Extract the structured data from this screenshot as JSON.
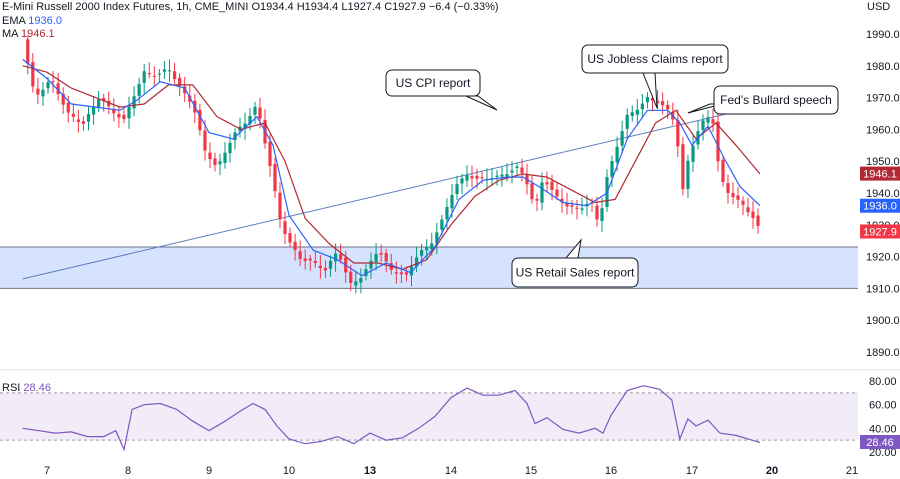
{
  "header": {
    "title": "E-Mini Russell 2000 Index Futures, 1h, CME_MINI",
    "ohlc": {
      "o": "O1934.4",
      "h": "H1934.4",
      "l": "L1927.4",
      "c": "C1927.9",
      "chg": "−6.4 (−0.33%)"
    },
    "ema_label": "EMA",
    "ema_value": "1936.0",
    "ma_label": "MA",
    "ma_value": "1946.1",
    "currency": "USD"
  },
  "rsi": {
    "label": "RSI",
    "value": "28.46"
  },
  "colors": {
    "up": "#089981",
    "down": "#f23645",
    "ema": "#2962ff",
    "ma": "#b22833",
    "rsi": "#7e57c2",
    "zone": "#d1e0ff",
    "trendline": "#5b7fbf"
  },
  "chart_data": [
    {
      "type": "candlestick",
      "title": "E-Mini Russell 2000 Index Futures, 1h, CME_MINI",
      "xlabel": "",
      "ylabel": "",
      "x_ticks": [
        "7",
        "8",
        "9",
        "10",
        "13",
        "14",
        "15",
        "16",
        "17",
        "20",
        "21"
      ],
      "y_ticks": [
        1890,
        1900,
        1910,
        1920,
        1930,
        1940,
        1950,
        1960,
        1970,
        1980,
        1990
      ],
      "ylim": [
        1882,
        2000
      ],
      "axis_side": "right",
      "grid": false,
      "price_path": [
        [
          6.7,
          1988
        ],
        [
          6.85,
          1970
        ],
        [
          7.05,
          1976
        ],
        [
          7.25,
          1965
        ],
        [
          7.45,
          1962
        ],
        [
          7.65,
          1970
        ],
        [
          7.8,
          1966
        ],
        [
          7.95,
          1963
        ],
        [
          8.1,
          1972
        ],
        [
          8.2,
          1978
        ],
        [
          8.35,
          1977
        ],
        [
          8.5,
          1979
        ],
        [
          8.65,
          1973
        ],
        [
          8.8,
          1968
        ],
        [
          8.95,
          1953
        ],
        [
          9.1,
          1948
        ],
        [
          9.3,
          1958
        ],
        [
          9.45,
          1962
        ],
        [
          9.6,
          1968
        ],
        [
          9.75,
          1950
        ],
        [
          9.9,
          1930
        ],
        [
          10.0,
          1925
        ],
        [
          10.15,
          1919
        ],
        [
          10.3,
          1918
        ],
        [
          10.45,
          1916
        ],
        [
          10.6,
          1922
        ],
        [
          10.75,
          1911
        ],
        [
          10.9,
          1914
        ],
        [
          11.1,
          1922
        ],
        [
          11.25,
          1916
        ],
        [
          11.45,
          1914
        ],
        [
          11.6,
          1921
        ],
        [
          11.75,
          1924
        ],
        [
          11.9,
          1932
        ],
        [
          12.05,
          1942
        ],
        [
          12.2,
          1946
        ],
        [
          12.35,
          1944
        ],
        [
          12.55,
          1945
        ],
        [
          12.75,
          1947
        ],
        [
          12.85,
          1948
        ],
        [
          12.95,
          1943
        ],
        [
          13.05,
          1935
        ],
        [
          13.15,
          1945
        ],
        [
          13.3,
          1939
        ],
        [
          13.45,
          1936
        ],
        [
          13.6,
          1935
        ],
        [
          13.75,
          1937
        ],
        [
          13.85,
          1930
        ],
        [
          13.95,
          1945
        ],
        [
          14.05,
          1953
        ],
        [
          14.2,
          1964
        ],
        [
          14.3,
          1966
        ],
        [
          14.45,
          1970
        ],
        [
          14.6,
          1968
        ],
        [
          14.7,
          1966
        ],
        [
          14.8,
          1962
        ],
        [
          14.88,
          1940
        ],
        [
          14.95,
          1950
        ],
        [
          15.05,
          1958
        ],
        [
          15.15,
          1963
        ],
        [
          15.25,
          1965
        ],
        [
          15.35,
          1945
        ],
        [
          15.45,
          1940
        ],
        [
          15.55,
          1938
        ],
        [
          15.65,
          1936
        ],
        [
          15.75,
          1933
        ],
        [
          15.85,
          1928
        ]
      ],
      "series": [
        {
          "name": "EMA",
          "color": "#2962ff",
          "last": 1936.0,
          "points": [
            [
              6.7,
              1982
            ],
            [
              7.0,
              1976
            ],
            [
              7.3,
              1968
            ],
            [
              7.6,
              1967
            ],
            [
              7.9,
              1966
            ],
            [
              8.1,
              1969
            ],
            [
              8.4,
              1975
            ],
            [
              8.7,
              1973
            ],
            [
              9.0,
              1959
            ],
            [
              9.3,
              1957
            ],
            [
              9.6,
              1964
            ],
            [
              9.8,
              1955
            ],
            [
              10.0,
              1933
            ],
            [
              10.3,
              1922
            ],
            [
              10.6,
              1919
            ],
            [
              10.9,
              1914
            ],
            [
              11.2,
              1918
            ],
            [
              11.5,
              1915
            ],
            [
              11.8,
              1923
            ],
            [
              12.1,
              1938
            ],
            [
              12.4,
              1944
            ],
            [
              12.7,
              1945
            ],
            [
              12.9,
              1945
            ],
            [
              13.1,
              1942
            ],
            [
              13.4,
              1937
            ],
            [
              13.7,
              1936
            ],
            [
              13.95,
              1940
            ],
            [
              14.2,
              1957
            ],
            [
              14.45,
              1966
            ],
            [
              14.7,
              1966
            ],
            [
              14.85,
              1962
            ],
            [
              15.0,
              1955
            ],
            [
              15.2,
              1961
            ],
            [
              15.4,
              1951
            ],
            [
              15.6,
              1942
            ],
            [
              15.85,
              1936
            ]
          ]
        },
        {
          "name": "MA",
          "color": "#b22833",
          "last": 1946.1,
          "points": [
            [
              6.7,
              1980
            ],
            [
              7.0,
              1978
            ],
            [
              7.3,
              1973
            ],
            [
              7.6,
              1970
            ],
            [
              7.9,
              1967
            ],
            [
              8.2,
              1968
            ],
            [
              8.5,
              1974
            ],
            [
              8.8,
              1974
            ],
            [
              9.1,
              1964
            ],
            [
              9.4,
              1960
            ],
            [
              9.7,
              1962
            ],
            [
              9.95,
              1950
            ],
            [
              10.2,
              1932
            ],
            [
              10.5,
              1924
            ],
            [
              10.8,
              1918
            ],
            [
              11.1,
              1918
            ],
            [
              11.4,
              1916
            ],
            [
              11.7,
              1919
            ],
            [
              12.0,
              1930
            ],
            [
              12.3,
              1939
            ],
            [
              12.6,
              1944
            ],
            [
              12.9,
              1946
            ],
            [
              13.2,
              1945
            ],
            [
              13.5,
              1941
            ],
            [
              13.8,
              1937
            ],
            [
              14.05,
              1938
            ],
            [
              14.3,
              1950
            ],
            [
              14.55,
              1962
            ],
            [
              14.8,
              1966
            ],
            [
              15.05,
              1957
            ],
            [
              15.3,
              1962
            ],
            [
              15.55,
              1955
            ],
            [
              15.85,
              1946
            ]
          ]
        }
      ],
      "last_close": 1927.9,
      "price_labels": [
        "1946.1",
        "1936.0",
        "1927.9"
      ],
      "support_zone": [
        1910,
        1923
      ],
      "trendline": [
        [
          6.7,
          1913
        ],
        [
          16.3,
          1970
        ]
      ],
      "annotations": [
        {
          "text": "US CPI report",
          "x": 12.6,
          "y": 1962
        },
        {
          "text": "US Jobless Claims report",
          "x": 14.55,
          "y": 1963
        },
        {
          "text": "Fed's Bullard speech",
          "x": 15.1,
          "y": 1965
        },
        {
          "text": "US Retail Sales report",
          "x": 13.8,
          "y": 1929
        }
      ]
    },
    {
      "type": "line",
      "title": "RSI",
      "y_ticks": [
        20.0,
        40.0,
        60.0,
        80.0
      ],
      "ylim": [
        18,
        82
      ],
      "bands": [
        30,
        70
      ],
      "last": 28.46,
      "series": [
        {
          "name": "RSI",
          "color": "#7e57c2",
          "points": [
            [
              6.7,
              40
            ],
            [
              6.9,
              38
            ],
            [
              7.1,
              36
            ],
            [
              7.3,
              37
            ],
            [
              7.5,
              33
            ],
            [
              7.7,
              33
            ],
            [
              7.85,
              38
            ],
            [
              7.95,
              22
            ],
            [
              8.05,
              56
            ],
            [
              8.2,
              60
            ],
            [
              8.4,
              61
            ],
            [
              8.6,
              56
            ],
            [
              8.8,
              46
            ],
            [
              9.0,
              38
            ],
            [
              9.2,
              46
            ],
            [
              9.4,
              55
            ],
            [
              9.55,
              61
            ],
            [
              9.7,
              56
            ],
            [
              9.85,
              42
            ],
            [
              10.0,
              31
            ],
            [
              10.2,
              27
            ],
            [
              10.4,
              29
            ],
            [
              10.6,
              33
            ],
            [
              10.8,
              27
            ],
            [
              11.0,
              36
            ],
            [
              11.2,
              30
            ],
            [
              11.4,
              32
            ],
            [
              11.6,
              40
            ],
            [
              11.8,
              50
            ],
            [
              12.0,
              66
            ],
            [
              12.2,
              74
            ],
            [
              12.4,
              68
            ],
            [
              12.6,
              68
            ],
            [
              12.8,
              72
            ],
            [
              12.95,
              61
            ],
            [
              13.05,
              44
            ],
            [
              13.2,
              49
            ],
            [
              13.4,
              39
            ],
            [
              13.6,
              36
            ],
            [
              13.8,
              40
            ],
            [
              13.9,
              36
            ],
            [
              14.0,
              51
            ],
            [
              14.2,
              72
            ],
            [
              14.4,
              76
            ],
            [
              14.6,
              73
            ],
            [
              14.75,
              64
            ],
            [
              14.85,
              31
            ],
            [
              14.95,
              48
            ],
            [
              15.05,
              42
            ],
            [
              15.2,
              47
            ],
            [
              15.35,
              36
            ],
            [
              15.55,
              34
            ],
            [
              15.75,
              30
            ],
            [
              15.85,
              28
            ]
          ]
        }
      ]
    }
  ]
}
